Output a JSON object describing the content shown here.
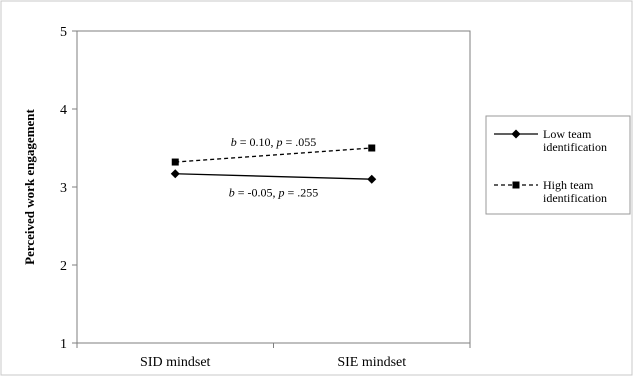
{
  "chart_data": {
    "type": "line",
    "title": "",
    "xlabel": "",
    "ylabel": "Perceived work engagement",
    "categories": [
      "SID mindset",
      "SIE mindset"
    ],
    "ylim": [
      1,
      5
    ],
    "yticks": [
      1,
      2,
      3,
      4,
      5
    ],
    "grid": false,
    "legend_position": "right",
    "series": [
      {
        "name": "Low team identification",
        "values": [
          3.17,
          3.1
        ],
        "line_style": "solid",
        "marker": "diamond",
        "color": "#000000",
        "annotation": {
          "b_label": "b",
          "text": " = -0.05, ",
          "p_label": "p",
          "value": " = .255"
        }
      },
      {
        "name": "High team identification",
        "values": [
          3.32,
          3.5
        ],
        "line_style": "dashed",
        "marker": "square",
        "color": "#000000",
        "annotation": {
          "b_label": "b",
          "text": " = 0.10, ",
          "p_label": "p",
          "value": " = .055"
        }
      }
    ],
    "legend_lines": [
      [
        "Low team",
        "identification"
      ],
      [
        "High team",
        "identification"
      ]
    ]
  }
}
